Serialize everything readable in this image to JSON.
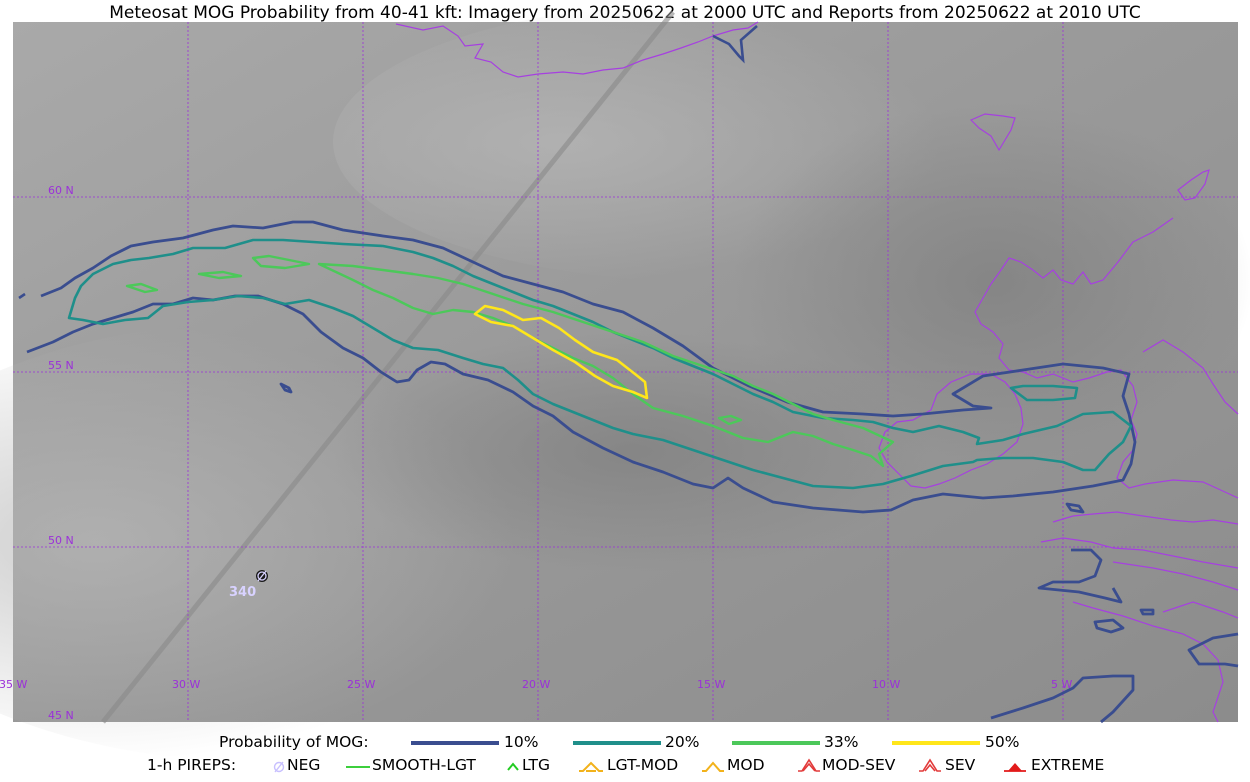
{
  "title": "Meteosat MOG Probability from 40-41 kft: Imagery from 20250622 at 2000 UTC and Reports from 20250622 at 2010 UTC",
  "map": {
    "lat_labels": [
      "60 N",
      "55 N",
      "50 N",
      "45 N"
    ],
    "lon_labels": [
      "35 W",
      "30 W",
      "25 W",
      "20 W",
      "15 W",
      "10 W",
      "5 W"
    ],
    "pirep_report": {
      "symbol": "NEG",
      "value": "340"
    },
    "colors": {
      "graticule": "#9b30d9",
      "coast": "#a640e0",
      "p10": "#3a4d8f",
      "p20": "#1f8f8a",
      "p33": "#4cc85a",
      "p50": "#ffe61a"
    }
  },
  "legend": {
    "probability": {
      "label": "Probability of MOG:",
      "entries": [
        {
          "label": "10%",
          "color": "#3a4d8f"
        },
        {
          "label": "20%",
          "color": "#1f8f8a"
        },
        {
          "label": "33%",
          "color": "#4cc85a"
        },
        {
          "label": "50%",
          "color": "#ffe61a"
        }
      ]
    },
    "pireps": {
      "label": "1-h PIREPS:",
      "entries": [
        {
          "label": "NEG",
          "icon": "neg-icon",
          "color": "#c8c0ff"
        },
        {
          "label": "SMOOTH-LGT",
          "icon": "smooth-lgt-icon",
          "color": "#3ccf3c"
        },
        {
          "label": "LTG",
          "icon": "ltg-icon",
          "color": "#22cc22"
        },
        {
          "label": "LGT-MOD",
          "icon": "lgt-mod-icon",
          "color": "#f2b21b"
        },
        {
          "label": "MOD",
          "icon": "mod-icon",
          "color": "#f2b21b"
        },
        {
          "label": "MOD-SEV",
          "icon": "mod-sev-icon",
          "color": "#e23a3a"
        },
        {
          "label": "SEV",
          "icon": "sev-icon",
          "color": "#e23a3a"
        },
        {
          "label": "EXTREME",
          "icon": "extreme-icon",
          "color": "#e21a1a"
        }
      ]
    }
  }
}
